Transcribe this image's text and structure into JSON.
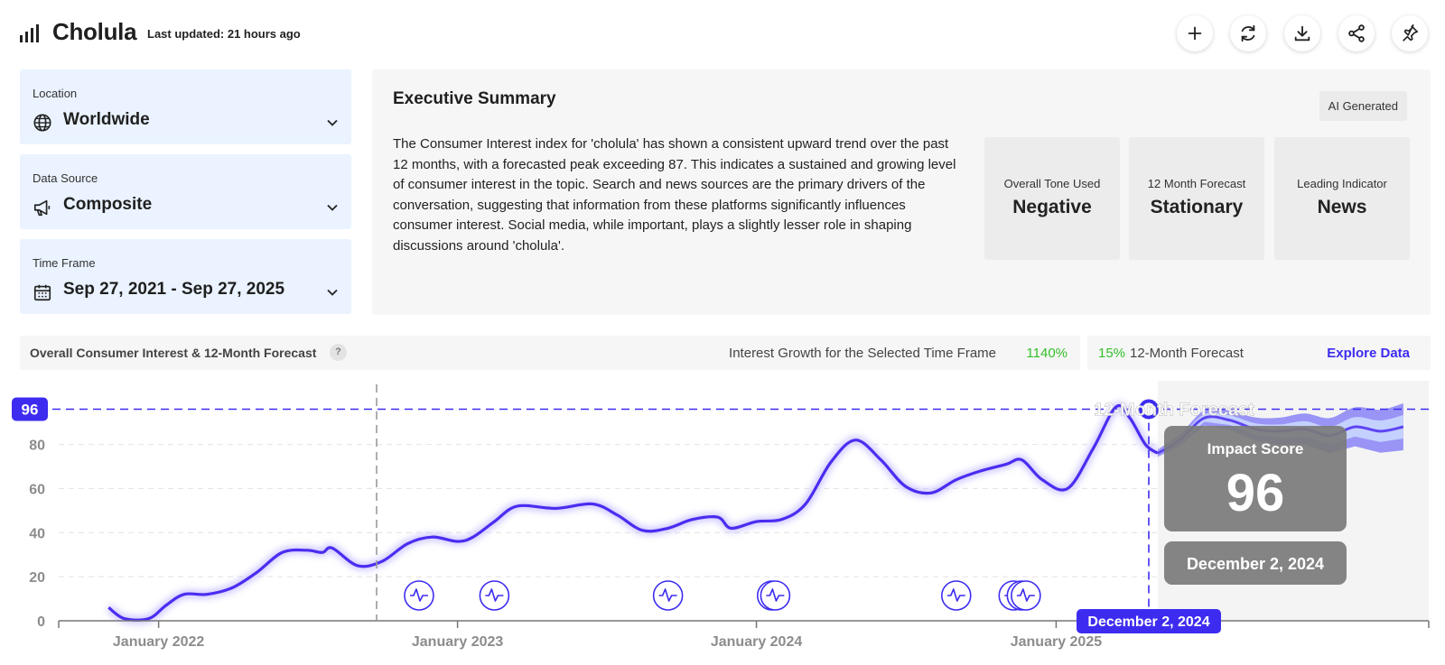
{
  "header": {
    "brand": "Cholula",
    "last_updated": "Last updated: 21 hours ago",
    "toolbar_icons": [
      "plus-icon",
      "refresh-icon",
      "download-icon",
      "share-icon",
      "pin-icon"
    ]
  },
  "filters": {
    "location": {
      "label": "Location",
      "value": "Worldwide",
      "icon": "globe-icon"
    },
    "data_source": {
      "label": "Data Source",
      "value": "Composite",
      "icon": "megaphone-icon"
    },
    "time_frame": {
      "label": "Time Frame",
      "value": "Sep 27, 2021 - Sep 27, 2025",
      "icon": "calendar-icon"
    }
  },
  "summary": {
    "title": "Executive Summary",
    "badge": "AI Generated",
    "text": "The Consumer Interest index for 'cholula' has shown a consistent upward trend over the past 12 months, with a forecasted peak exceeding 87. This indicates a sustained and growing level of consumer interest in the topic. Search and news sources are the primary drivers of the conversation, suggesting that information from these platforms significantly influences consumer interest. Social media, while important, plays a slightly lesser role in shaping discussions around 'cholula'.",
    "stats": [
      {
        "label": "Overall Tone Used",
        "value": "Negative"
      },
      {
        "label": "12 Month Forecast",
        "value": "Stationary"
      },
      {
        "label": "Leading Indicator",
        "value": "News"
      }
    ]
  },
  "chart_header": {
    "title": "Overall Consumer Interest & 12-Month Forecast",
    "help": "?",
    "growth_label": "Interest Growth for the Selected Time Frame",
    "growth_value": "1140%",
    "forecast_pct": "15%",
    "forecast_label": "12-Month Forecast",
    "explore": "Explore Data"
  },
  "colors": {
    "accent": "#3d2cf0",
    "line": "#4b2cf0",
    "forecast_band": "#7b74f5",
    "positive": "#33c02a",
    "tooltip_bg": "#7a7a7a"
  },
  "chart_data": {
    "type": "line",
    "ylim": [
      0,
      100
    ],
    "yticks": [
      0,
      20,
      40,
      60,
      80
    ],
    "x_ticks": [
      "January 2022",
      "January 2023",
      "January 2024",
      "January 2025"
    ],
    "series": [
      {
        "values": [
          [
            "2021-11-01",
            6
          ],
          [
            "2021-11-20",
            1
          ],
          [
            "2021-12-20",
            1
          ],
          [
            "2022-01-10",
            7
          ],
          [
            "2022-02-01",
            12
          ],
          [
            "2022-03-01",
            12
          ],
          [
            "2022-04-01",
            15
          ],
          [
            "2022-05-01",
            22
          ],
          [
            "2022-06-01",
            31
          ],
          [
            "2022-07-01",
            32
          ],
          [
            "2022-07-20",
            31
          ],
          [
            "2022-08-01",
            33
          ],
          [
            "2022-09-01",
            25
          ],
          [
            "2022-10-01",
            27
          ],
          [
            "2022-11-01",
            35
          ],
          [
            "2022-12-01",
            38
          ],
          [
            "2023-01-01",
            36
          ],
          [
            "2023-01-20",
            38
          ],
          [
            "2023-02-15",
            45
          ],
          [
            "2023-03-15",
            52
          ],
          [
            "2023-05-01",
            51
          ],
          [
            "2023-06-15",
            53
          ],
          [
            "2023-07-15",
            48
          ],
          [
            "2023-08-15",
            41
          ],
          [
            "2023-09-15",
            42
          ],
          [
            "2023-10-15",
            46
          ],
          [
            "2023-11-15",
            47
          ],
          [
            "2023-12-01",
            42
          ],
          [
            "2024-01-01",
            45
          ],
          [
            "2024-02-01",
            46
          ],
          [
            "2024-03-01",
            53
          ],
          [
            "2024-04-01",
            72
          ],
          [
            "2024-05-01",
            82
          ],
          [
            "2024-06-01",
            73
          ],
          [
            "2024-07-01",
            61
          ],
          [
            "2024-08-01",
            58
          ],
          [
            "2024-09-01",
            64
          ],
          [
            "2024-10-01",
            68
          ],
          [
            "2024-11-01",
            71
          ],
          [
            "2024-11-20",
            73
          ],
          [
            "2024-12-15",
            64
          ],
          [
            "2025-01-15",
            60
          ],
          [
            "2025-02-15",
            78
          ],
          [
            "2025-03-15",
            97
          ],
          [
            "2025-04-01",
            92
          ],
          [
            "2025-04-20",
            80
          ],
          [
            "2025-05-05",
            76
          ]
        ]
      }
    ],
    "forecast": {
      "label": "12-Month Forecast",
      "values": [
        [
          "2025-05-05",
          76
        ],
        [
          "2025-06-01",
          82
        ],
        [
          "2025-07-01",
          92
        ],
        [
          "2025-08-01",
          91
        ],
        [
          "2025-09-01",
          87
        ],
        [
          "2025-10-01",
          86
        ],
        [
          "2025-11-01",
          87
        ],
        [
          "2025-12-01",
          84
        ],
        [
          "2026-01-01",
          88
        ],
        [
          "2026-02-01",
          86
        ],
        [
          "2026-03-01",
          88
        ]
      ]
    },
    "reference_value": "96",
    "tooltip": {
      "title": "Impact Score",
      "value": "96",
      "date": "December 2, 2024"
    },
    "event_dates": [
      "2022-11-15",
      "2023-02-15",
      "2023-09-15",
      "2024-01-20",
      "2024-01-24",
      "2024-09-01",
      "2024-11-10",
      "2024-11-20",
      "2024-11-25"
    ]
  }
}
